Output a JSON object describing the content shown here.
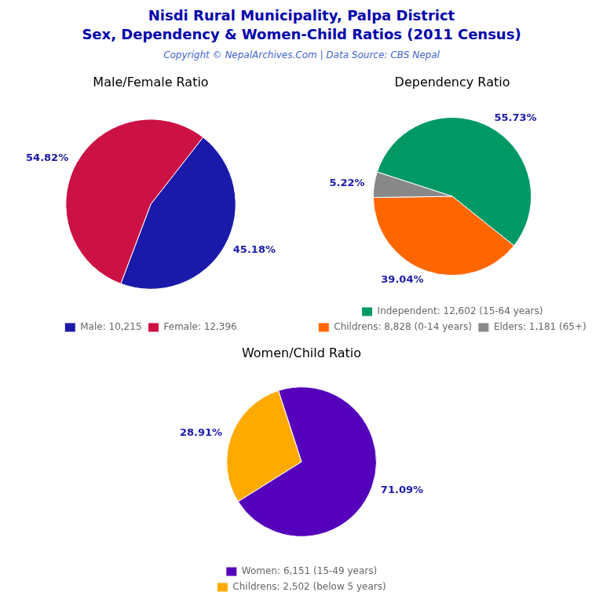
{
  "title": "Nisdi Rural Municipality, Palpa District",
  "subtitle": "Sex, Dependency & Women-Child Ratios (2011 Census)",
  "annotations": [
    "Copyright © NepalArchives.Com | Data Source: CBS Nepal"
  ],
  "chart_data": [
    {
      "type": "pie",
      "title": "Male/Female Ratio",
      "categories": [
        "Male: 10,215",
        "Female: 12,396"
      ],
      "values": [
        45.18,
        54.82
      ],
      "value_labels": [
        "45.18%",
        "54.82%"
      ],
      "colors": [
        "#1a1aaa",
        "#cc1144"
      ],
      "data_labels": true,
      "legend": "bottom"
    },
    {
      "type": "pie",
      "title": "Dependency Ratio",
      "categories": [
        "Independent: 12,602 (15-64 years)",
        "Childrens: 8,828 (0-14 years)",
        "Elders: 1,181 (65+)"
      ],
      "values": [
        55.73,
        39.04,
        5.22
      ],
      "value_labels": [
        "55.73%",
        "39.04%",
        "5.22%"
      ],
      "colors": [
        "#009966",
        "#ff6600",
        "#888888"
      ],
      "data_labels": true,
      "legend": "bottom"
    },
    {
      "type": "pie",
      "title": "Women/Child Ratio",
      "categories": [
        "Women: 6,151 (15-49 years)",
        "Childrens: 2,502 (below 5 years)"
      ],
      "values": [
        71.09,
        28.91
      ],
      "value_labels": [
        "71.09%",
        "28.91%"
      ],
      "colors": [
        "#5500bb",
        "#ffaa00"
      ],
      "data_labels": true,
      "legend": "bottom"
    }
  ]
}
